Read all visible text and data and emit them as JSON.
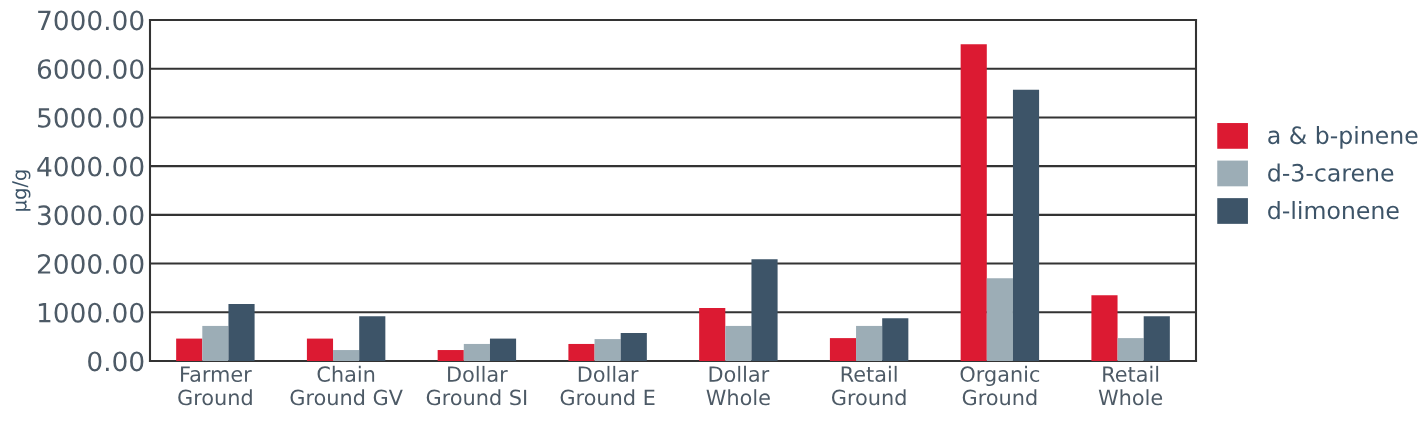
{
  "chart_data": {
    "type": "bar",
    "ylabel": "µg/g",
    "categories": [
      "Farmer\nGround",
      "Chain\nGround GV",
      "Dollar\nGround SI",
      "Dollar\nGround E",
      "Dollar\nWhole",
      "Retail\nGround",
      "Organic\nGround",
      "Retail\nWhole"
    ],
    "series": [
      {
        "name": "a & b-pinene",
        "color": "#dc1a32",
        "values": [
          460,
          460,
          225,
          350,
          1090,
          470,
          6500,
          1350
        ]
      },
      {
        "name": "d-3-carene",
        "color": "#9cadb6",
        "values": [
          720,
          225,
          350,
          450,
          720,
          720,
          1700,
          470
        ]
      },
      {
        "name": "d-limonene",
        "color": "#3d5468",
        "values": [
          1170,
          920,
          460,
          575,
          2090,
          880,
          5570,
          920
        ]
      }
    ],
    "ylim": [
      0,
      7000
    ],
    "yticks": [
      {
        "value": 0,
        "label": "0.00"
      },
      {
        "value": 1000,
        "label": "1000.00"
      },
      {
        "value": 2000,
        "label": "2000.00"
      },
      {
        "value": 3000,
        "label": "3000.00"
      },
      {
        "value": 4000,
        "label": "4000.00"
      },
      {
        "value": 5000,
        "label": "5000.00"
      },
      {
        "value": 6000,
        "label": "6000.00"
      },
      {
        "value": 7000,
        "label": "7000.00"
      }
    ],
    "grid": "y",
    "legend": "right"
  }
}
